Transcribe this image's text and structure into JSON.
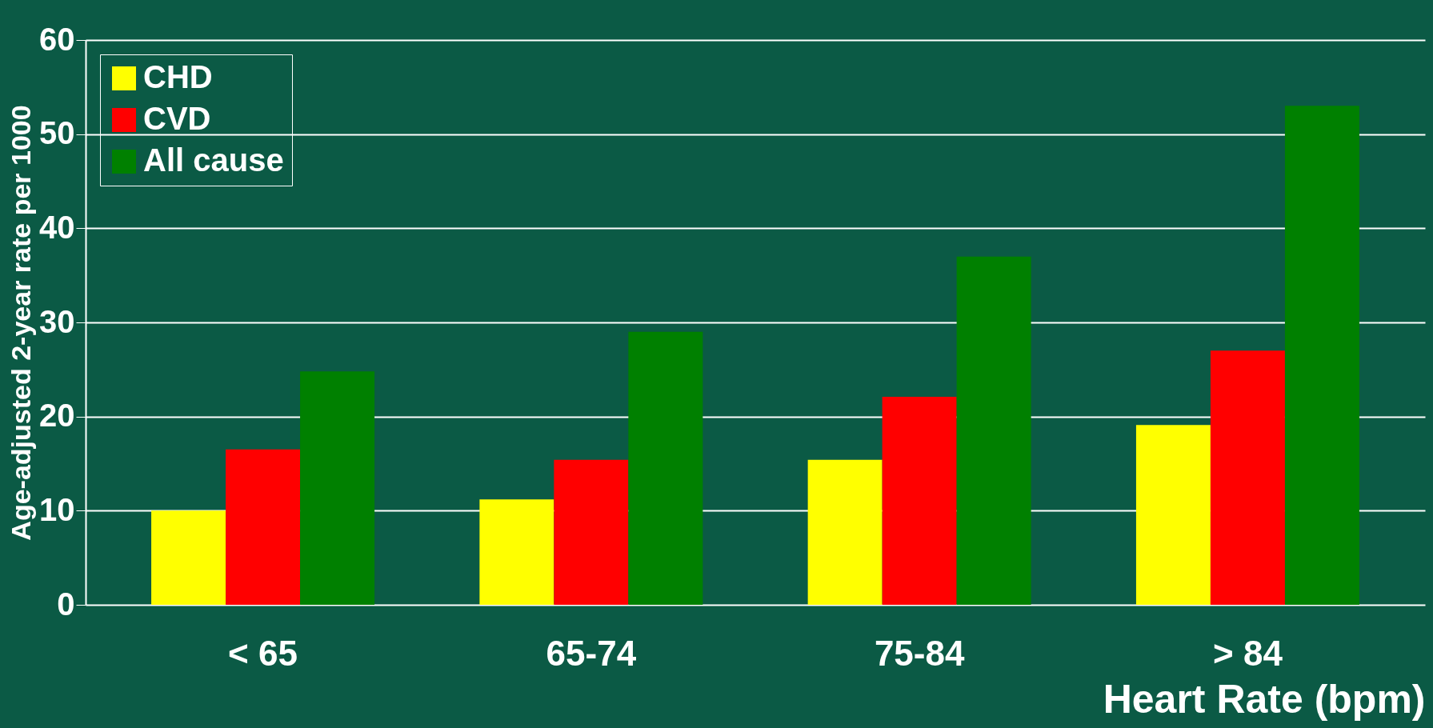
{
  "chart_data": {
    "type": "bar",
    "xlabel": "Heart Rate (bpm)",
    "ylabel": "Age-adjusted 2-year rate per 1000",
    "categories": [
      "< 65",
      "65-74",
      "75-84",
      "> 84"
    ],
    "series": [
      {
        "name": "CHD",
        "color": "#ffff00",
        "values": [
          10,
          11.2,
          15.4,
          19.1
        ]
      },
      {
        "name": "CVD",
        "color": "#ff0000",
        "values": [
          16.5,
          15.4,
          22.1,
          27
        ]
      },
      {
        "name": "All cause",
        "color": "#008000",
        "values": [
          24.8,
          29,
          37,
          53
        ]
      }
    ],
    "ylim": [
      0,
      60
    ],
    "yticks": [
      0,
      10,
      20,
      30,
      40,
      50,
      60
    ],
    "grid": "y",
    "legend": "top left"
  }
}
